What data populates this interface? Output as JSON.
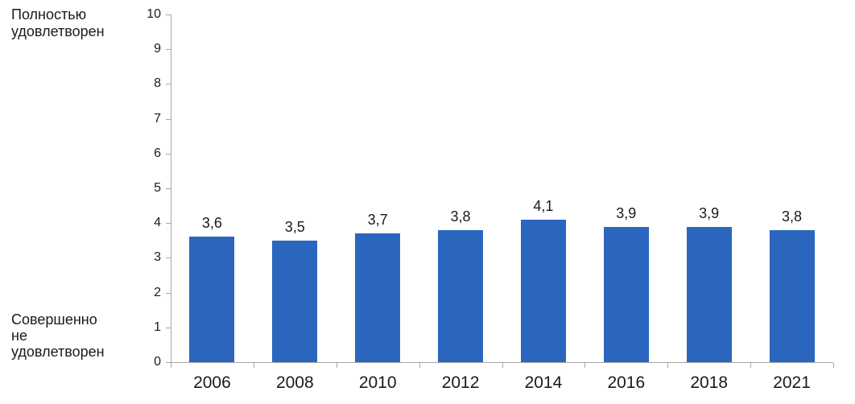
{
  "chart_data": {
    "type": "bar",
    "title": "",
    "xlabel": "",
    "ylabel": "",
    "categories": [
      "2006",
      "2008",
      "2010",
      "2012",
      "2014",
      "2016",
      "2018",
      "2021"
    ],
    "values": [
      3.6,
      3.5,
      3.7,
      3.8,
      4.1,
      3.9,
      3.9,
      3.8
    ],
    "value_labels": [
      "3,6",
      "3,5",
      "3,7",
      "3,8",
      "4,1",
      "3,9",
      "3,9",
      "3,8"
    ],
    "y_axis": {
      "min": 0,
      "max": 10,
      "step": 1,
      "tick_labels": [
        "0",
        "1",
        "2",
        "3",
        "4",
        "5",
        "6",
        "7",
        "8",
        "9",
        "10"
      ]
    },
    "axis_annotations": {
      "top": "Полностью\nудовлетворен",
      "bottom": "Совершенно\nне\nудовлетворен"
    },
    "grid": false,
    "legend": false,
    "colors": {
      "bar": "#2a66bd",
      "axis": "#a6a6a6",
      "text": "#1a1a1a",
      "background": "#ffffff"
    }
  }
}
